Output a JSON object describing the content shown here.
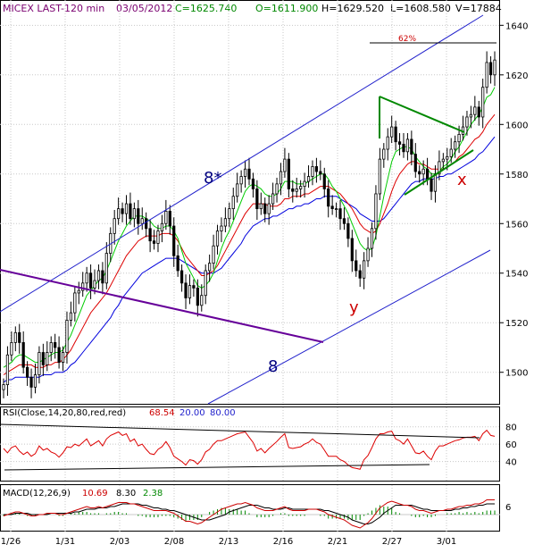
{
  "header": {
    "symbol": "MICEX LAST-120 min",
    "date": "03/05/2012",
    "close": "C=1625.740",
    "open": "O=1611.900",
    "high": "H=1629.520",
    "low": "L=1608.580",
    "volume": "V=17884"
  },
  "annotations": {
    "wave_8_star": "8*",
    "wave_8": "8",
    "wave_y": "y",
    "wave_x": "x",
    "fib_pct": "62%"
  },
  "rsi": {
    "label": "RSI(Close,14,20,80,red,red)",
    "value": "68.54",
    "lo": "20.00",
    "hi": "80.00",
    "ticks": [
      "80",
      "60",
      "40"
    ]
  },
  "macd": {
    "label": "MACD(12,26,9)",
    "v1": "10.69",
    "v2": "8.30",
    "v3": "2.38",
    "ticks": [
      "6"
    ]
  },
  "colors": {
    "price": "#000000",
    "ma_fast": "#00cc00",
    "ma_mid": "#dd0000",
    "ma_slow": "#0000dd",
    "channel": "#2222cc",
    "wedge": "#008800",
    "fan_line": "#660099",
    "fib_text": "#cc0000",
    "rsi_line": "#dd0000",
    "header_green": "#008800",
    "header_purple": "#7a0070"
  },
  "chart_data": {
    "type": "candlestick",
    "ylim": [
      1488,
      1643
    ],
    "y_ticks": [
      1640,
      1620,
      1600,
      1580,
      1560,
      1540,
      1520,
      1500
    ],
    "x_tick_labels": [
      "1/26",
      "1/31",
      "2/03",
      "2/08",
      "2/13",
      "2/16",
      "2/21",
      "2/27",
      "3/01"
    ],
    "closes": [
      1495,
      1507,
      1512,
      1516,
      1512,
      1502,
      1498,
      1494,
      1499,
      1508,
      1503,
      1508,
      1512,
      1510,
      1504,
      1508,
      1521,
      1524,
      1532,
      1533,
      1536,
      1540,
      1534,
      1537,
      1541,
      1536,
      1548,
      1556,
      1562,
      1566,
      1564,
      1568,
      1562,
      1566,
      1560,
      1562,
      1558,
      1553,
      1552,
      1557,
      1560,
      1565,
      1559,
      1547,
      1541,
      1536,
      1530,
      1535,
      1534,
      1527,
      1531,
      1541,
      1544,
      1551,
      1557,
      1559,
      1562,
      1566,
      1571,
      1576,
      1579,
      1582,
      1578,
      1574,
      1566,
      1568,
      1564,
      1568,
      1572,
      1576,
      1581,
      1586,
      1574,
      1573,
      1574,
      1575,
      1577,
      1579,
      1583,
      1581,
      1580,
      1574,
      1567,
      1566,
      1566,
      1562,
      1560,
      1554,
      1545,
      1541,
      1538,
      1545,
      1550,
      1558,
      1572,
      1586,
      1590,
      1595,
      1599,
      1593,
      1592,
      1589,
      1594,
      1588,
      1581,
      1580,
      1582,
      1578,
      1573,
      1580,
      1585,
      1586,
      1587,
      1590,
      1593,
      1596,
      1599,
      1603,
      1604,
      1607,
      1603,
      1615,
      1625,
      1620,
      1626
    ],
    "ma_fast": [
      1502,
      1503,
      1504,
      1506,
      1507,
      1507,
      1506,
      1505,
      1504,
      1504,
      1505,
      1506,
      1507,
      1508,
      1508,
      1509,
      1512,
      1515,
      1519,
      1523,
      1527,
      1531,
      1533,
      1535,
      1537,
      1538,
      1541,
      1545,
      1549,
      1553,
      1556,
      1559,
      1561,
      1563,
      1563,
      1563,
      1562,
      1561,
      1559,
      1558,
      1558,
      1559,
      1559,
      1557,
      1554,
      1549,
      1544,
      1541,
      1538,
      1535,
      1534,
      1535,
      1537,
      1540,
      1545,
      1550,
      1554,
      1557,
      1561,
      1565,
      1569,
      1573,
      1575,
      1576,
      1575,
      1574,
      1572,
      1571,
      1571,
      1572,
      1574,
      1577,
      1577,
      1577,
      1576,
      1576,
      1576,
      1577,
      1578,
      1579,
      1580,
      1580,
      1578,
      1575,
      1573,
      1570,
      1567,
      1564,
      1560,
      1556,
      1552,
      1550,
      1549,
      1550,
      1555,
      1563,
      1571,
      1578,
      1585,
      1589,
      1590,
      1591,
      1591,
      1590,
      1587,
      1585,
      1583,
      1582,
      1580,
      1580,
      1581,
      1583,
      1584,
      1586,
      1589,
      1591,
      1594,
      1597,
      1600,
      1602,
      1604,
      1607,
      1611,
      1612,
      1615
    ],
    "ma_mid": [
      1499,
      1500,
      1501,
      1502,
      1503,
      1503,
      1503,
      1503,
      1502,
      1502,
      1502,
      1503,
      1503,
      1504,
      1504,
      1505,
      1507,
      1509,
      1512,
      1515,
      1518,
      1521,
      1524,
      1526,
      1528,
      1530,
      1532,
      1535,
      1538,
      1541,
      1544,
      1547,
      1549,
      1551,
      1553,
      1554,
      1555,
      1555,
      1555,
      1555,
      1556,
      1556,
      1556,
      1555,
      1553,
      1550,
      1547,
      1545,
      1543,
      1541,
      1539,
      1539,
      1540,
      1541,
      1543,
      1546,
      1549,
      1552,
      1555,
      1558,
      1561,
      1564,
      1566,
      1568,
      1568,
      1568,
      1568,
      1567,
      1567,
      1567,
      1568,
      1570,
      1570,
      1571,
      1571,
      1571,
      1572,
      1572,
      1573,
      1574,
      1575,
      1575,
      1575,
      1574,
      1573,
      1572,
      1570,
      1568,
      1566,
      1563,
      1560,
      1558,
      1557,
      1556,
      1557,
      1560,
      1564,
      1568,
      1573,
      1577,
      1580,
      1582,
      1584,
      1585,
      1585,
      1584,
      1584,
      1583,
      1582,
      1582,
      1582,
      1582,
      1583,
      1584,
      1585,
      1587,
      1588,
      1590,
      1592,
      1594,
      1595,
      1597,
      1600,
      1602,
      1604
    ],
    "ma_slow": [
      1496,
      1497,
      1497,
      1498,
      1498,
      1498,
      1498,
      1498,
      1498,
      1498,
      1499,
      1499,
      1499,
      1500,
      1500,
      1500,
      1501,
      1503,
      1504,
      1506,
      1508,
      1510,
      1512,
      1514,
      1516,
      1518,
      1520,
      1522,
      1525,
      1527,
      1530,
      1532,
      1534,
      1536,
      1538,
      1540,
      1541,
      1542,
      1543,
      1544,
      1545,
      1546,
      1546,
      1546,
      1546,
      1545,
      1544,
      1543,
      1542,
      1541,
      1540,
      1540,
      1540,
      1540,
      1541,
      1542,
      1544,
      1546,
      1548,
      1550,
      1552,
      1555,
      1557,
      1559,
      1560,
      1561,
      1562,
      1562,
      1563,
      1563,
      1564,
      1565,
      1566,
      1566,
      1567,
      1567,
      1568,
      1568,
      1569,
      1570,
      1570,
      1571,
      1571,
      1571,
      1571,
      1570,
      1569,
      1568,
      1567,
      1566,
      1564,
      1563,
      1562,
      1561,
      1561,
      1561,
      1562,
      1564,
      1566,
      1568,
      1570,
      1572,
      1574,
      1576,
      1577,
      1577,
      1578,
      1578,
      1578,
      1578,
      1579,
      1579,
      1580,
      1580,
      1581,
      1582,
      1583,
      1584,
      1585,
      1586,
      1588,
      1589,
      1591,
      1593,
      1595
    ],
    "rsi_values": [
      55,
      50,
      56,
      58,
      52,
      48,
      51,
      46,
      49,
      58,
      53,
      55,
      51,
      49,
      45,
      50,
      57,
      56,
      60,
      58,
      62,
      66,
      58,
      61,
      64,
      58,
      66,
      70,
      72,
      74,
      70,
      72,
      63,
      66,
      58,
      60,
      54,
      49,
      48,
      54,
      57,
      63,
      56,
      46,
      43,
      40,
      36,
      42,
      41,
      37,
      42,
      51,
      54,
      60,
      64,
      64,
      66,
      68,
      70,
      72,
      73,
      74,
      68,
      62,
      52,
      55,
      50,
      55,
      59,
      63,
      68,
      72,
      56,
      55,
      56,
      57,
      60,
      62,
      66,
      62,
      60,
      53,
      46,
      46,
      46,
      42,
      40,
      36,
      33,
      32,
      31,
      42,
      47,
      56,
      66,
      72,
      72,
      74,
      75,
      66,
      64,
      60,
      66,
      58,
      50,
      49,
      52,
      46,
      42,
      52,
      58,
      58,
      60,
      62,
      64,
      65,
      67,
      68,
      68,
      69,
      64,
      72,
      76,
      70,
      69
    ],
    "macd_line": [
      -1,
      0,
      1,
      2,
      2,
      1,
      0,
      -1,
      -1,
      0,
      0,
      1,
      1,
      1,
      0,
      0,
      1,
      2,
      3,
      4,
      5,
      6,
      5,
      5,
      6,
      5,
      6,
      7,
      8,
      9,
      9,
      9,
      8,
      8,
      7,
      6,
      5,
      4,
      3,
      3,
      3,
      3,
      2,
      1,
      -1,
      -3,
      -5,
      -5,
      -6,
      -7,
      -6,
      -4,
      -2,
      0,
      2,
      4,
      5,
      6,
      7,
      8,
      8,
      9,
      8,
      7,
      5,
      4,
      3,
      3,
      3,
      4,
      5,
      6,
      4,
      3,
      3,
      3,
      3,
      4,
      4,
      4,
      3,
      2,
      0,
      -1,
      -2,
      -3,
      -4,
      -6,
      -8,
      -9,
      -10,
      -8,
      -6,
      -3,
      1,
      5,
      7,
      9,
      10,
      9,
      8,
      7,
      7,
      6,
      4,
      3,
      3,
      2,
      1,
      2,
      3,
      3,
      4,
      4,
      5,
      6,
      6,
      7,
      7,
      8,
      8,
      9,
      11,
      11,
      11
    ],
    "macd_signal": [
      0,
      0,
      0,
      1,
      1,
      1,
      1,
      0,
      0,
      0,
      0,
      0,
      1,
      1,
      1,
      1,
      1,
      1,
      2,
      2,
      3,
      4,
      4,
      4,
      5,
      5,
      5,
      6,
      6,
      7,
      8,
      8,
      8,
      8,
      8,
      7,
      7,
      6,
      5,
      5,
      4,
      4,
      3,
      3,
      2,
      1,
      0,
      -1,
      -2,
      -3,
      -4,
      -4,
      -4,
      -3,
      -2,
      -1,
      0,
      2,
      3,
      4,
      5,
      6,
      7,
      7,
      7,
      6,
      5,
      5,
      4,
      4,
      4,
      5,
      5,
      4,
      4,
      4,
      4,
      4,
      4,
      4,
      4,
      3,
      3,
      2,
      1,
      0,
      -1,
      -2,
      -4,
      -5,
      -6,
      -7,
      -7,
      -6,
      -4,
      -2,
      1,
      3,
      5,
      7,
      7,
      7,
      7,
      7,
      6,
      5,
      4,
      4,
      3,
      3,
      3,
      3,
      3,
      3,
      4,
      4,
      5,
      5,
      6,
      6,
      7,
      7,
      8,
      8,
      8
    ]
  }
}
